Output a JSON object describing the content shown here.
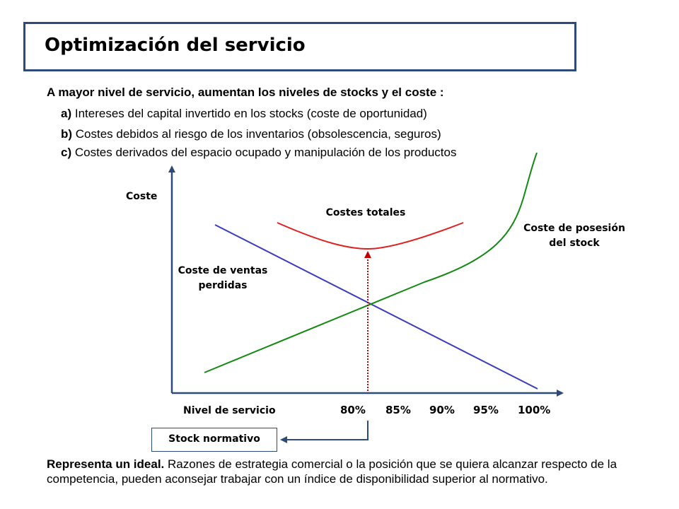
{
  "title": "Optimización del servicio",
  "intro": "A mayor nivel de servicio, aumentan los niveles de stocks y el coste :",
  "items": [
    {
      "letter": "a)",
      "text": " Intereses del capital invertido en los stocks (coste de oportunidad)"
    },
    {
      "letter": "b)",
      "text": " Costes debidos al riesgo de los inventarios (obsolescencia, seguros)"
    },
    {
      "letter": "c)",
      "text": " Costes derivados del espacio ocupado y manipulación de los productos"
    }
  ],
  "diagram": {
    "y_axis_label": "Coste",
    "x_axis_label": "Nivel de servicio",
    "x_ticks": [
      "80%",
      "85%",
      "90%",
      "95%",
      "100%"
    ],
    "curve_labels": {
      "total": "Costes totales",
      "holding_line1": "Coste de posesión",
      "holding_line2": "del stock",
      "lost_sales_line1": "Coste de ventas",
      "lost_sales_line2": "perdidas"
    },
    "colors": {
      "total": "#E02020",
      "holding": "#128A12",
      "lost_sales": "#3B3BC0",
      "optimum_marker": "#C00000",
      "connector": "#2E4A7A",
      "axis": "#2E4A7A"
    }
  },
  "stock_label": "Stock normativo",
  "footer": {
    "bold": "Representa un ideal.",
    "text": " Razones de estrategia comercial o la posición que se quiera alcanzar respecto de la competencia, pueden aconsejar trabajar con un índice de disponibilidad superior al normativo."
  }
}
